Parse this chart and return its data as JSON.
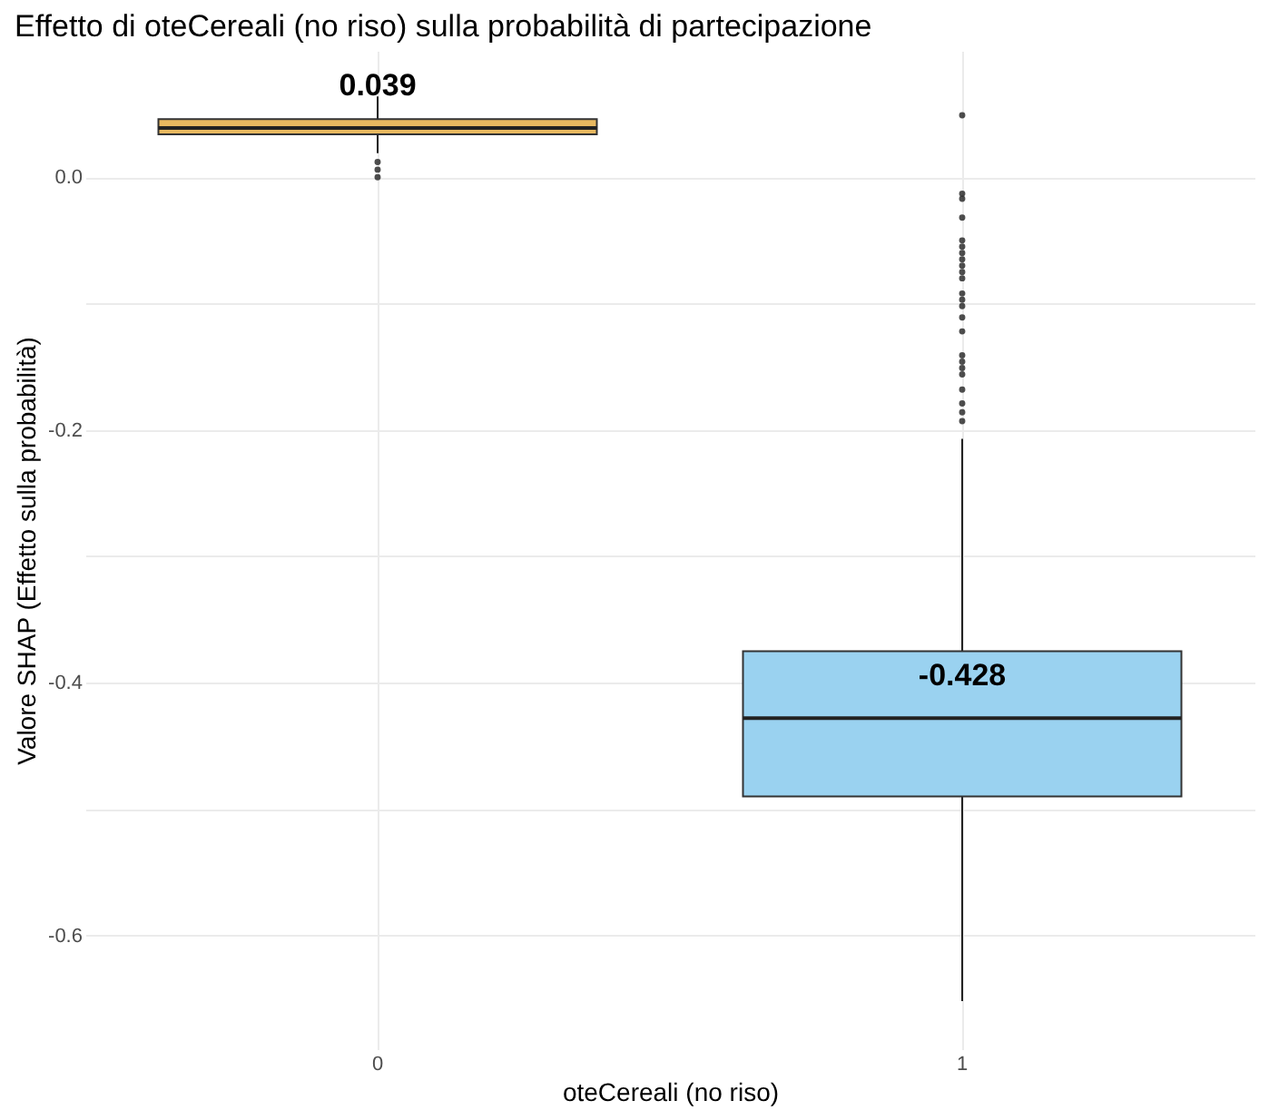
{
  "chart_data": {
    "type": "box",
    "title": "Effetto di oteCereali (no riso) sulla probabilità di partecipazione",
    "xlabel": "oteCereali (no riso)",
    "ylabel": "Valore SHAP (Effetto sulla probabilità)",
    "categories": [
      "0",
      "1"
    ],
    "colors": [
      "#e8b960",
      "#9ad2f0"
    ],
    "boxes": [
      {
        "low": 0.019,
        "q1": 0.034,
        "median": 0.039,
        "q3": 0.046,
        "high": 0.064,
        "outliers": [
          0.012,
          0.006,
          0.0
        ]
      },
      {
        "low": -0.652,
        "q1": -0.49,
        "median": -0.428,
        "q3": -0.375,
        "high": -0.207,
        "outliers": [
          0.049,
          -0.013,
          -0.017,
          -0.032,
          -0.05,
          -0.055,
          -0.06,
          -0.065,
          -0.07,
          -0.075,
          -0.08,
          -0.092,
          -0.097,
          -0.102,
          -0.111,
          -0.122,
          -0.141,
          -0.146,
          -0.151,
          -0.156,
          -0.168,
          -0.179,
          -0.186,
          -0.193
        ]
      }
    ],
    "annotations": [
      {
        "text": "0.039",
        "x": "0",
        "y": 0.039
      },
      {
        "text": "-0.428",
        "x": "1",
        "y": -0.428
      }
    ],
    "ylim": [
      -0.69,
      0.1
    ],
    "yticks": [
      {
        "value": 0,
        "label": "0.0"
      },
      {
        "value": -0.1,
        "label": null
      },
      {
        "value": -0.2,
        "label": "-0.2"
      },
      {
        "value": -0.3,
        "label": null
      },
      {
        "value": -0.4,
        "label": "-0.4"
      },
      {
        "value": -0.5,
        "label": null
      },
      {
        "value": -0.6,
        "label": "-0.6"
      }
    ],
    "grid": true
  }
}
